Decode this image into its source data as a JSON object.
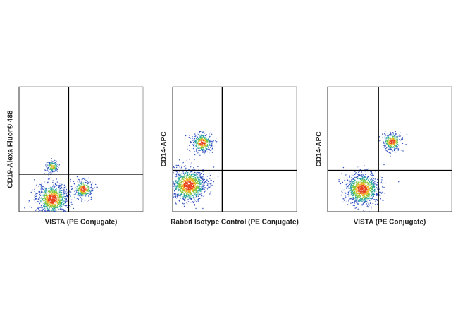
{
  "chart_data": [
    {
      "type": "scatter",
      "x_label": "VISTA (PE Conjugate)",
      "y_label": "CD19-Alexa Fluor® 488",
      "xlim": [
        0,
        1
      ],
      "ylim": [
        0,
        1
      ],
      "gate": {
        "x": 0.4,
        "y": 0.3
      },
      "populations": [
        {
          "x": 0.27,
          "y": 0.36,
          "n": 150
        },
        {
          "x": 0.27,
          "y": 0.1,
          "n": 900
        },
        {
          "x": 0.52,
          "y": 0.18,
          "n": 300
        }
      ]
    },
    {
      "type": "scatter",
      "x_label": "Rabbit Isotype Control (PE Conjugate)",
      "y_label": "CD14-APC",
      "xlim": [
        0,
        1
      ],
      "ylim": [
        0,
        1
      ],
      "gate": {
        "x": 0.4,
        "y": 0.33
      },
      "populations": [
        {
          "x": 0.24,
          "y": 0.55,
          "n": 350
        },
        {
          "x": 0.13,
          "y": 0.21,
          "n": 1100
        }
      ]
    },
    {
      "type": "scatter",
      "x_label": "VISTA (PE Conjugate)",
      "y_label": "CD14-APC",
      "xlim": [
        0,
        1
      ],
      "ylim": [
        0,
        1
      ],
      "gate": {
        "x": 0.41,
        "y": 0.33
      },
      "populations": [
        {
          "x": 0.52,
          "y": 0.56,
          "n": 300
        },
        {
          "x": 0.28,
          "y": 0.18,
          "n": 1000
        }
      ]
    }
  ]
}
